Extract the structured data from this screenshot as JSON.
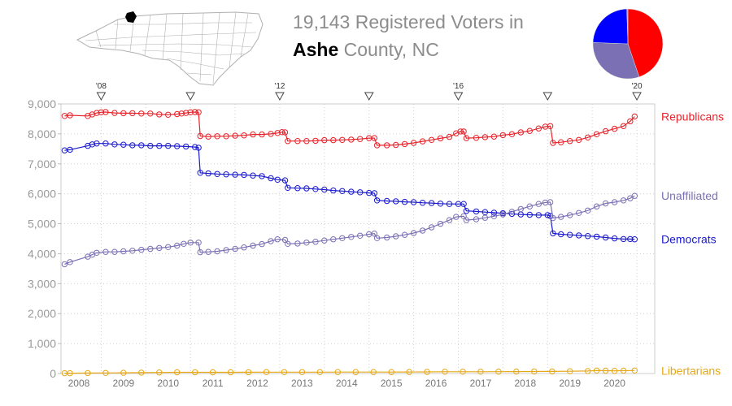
{
  "title": {
    "line1": "19,143 Registered Voters in",
    "county": "Ashe",
    "rest": " County, NC"
  },
  "colors": {
    "republicans": "#e8222a",
    "democrats": "#1a1acd",
    "unaffiliated": "#7b70b3",
    "libertarians": "#e6a817",
    "map_fill": "#ffffff",
    "map_stroke": "#b0b0b0",
    "map_highlight": "#000000",
    "axis_text": "#999999"
  },
  "pie": {
    "slices": [
      {
        "name": "Republicans",
        "value": 45,
        "color": "#ff0000"
      },
      {
        "name": "Unaffiliated",
        "value": 31,
        "color": "#7b70b3"
      },
      {
        "name": "Democrats",
        "value": 24,
        "color": "#0000ff"
      },
      {
        "name": "Libertarians",
        "value": 0.5,
        "color": "#e6a817"
      }
    ]
  },
  "chart_data": {
    "type": "line",
    "x_start": 2007.6,
    "x_end": 2020.9,
    "ylim": [
      0,
      9000
    ],
    "yticks": [
      0,
      1000,
      2000,
      3000,
      4000,
      5000,
      6000,
      7000,
      8000,
      9000
    ],
    "ytick_labels": [
      "0",
      "1,000",
      "2,000",
      "3,000",
      "4,000",
      "5,000",
      "6,000",
      "7,000",
      "8,000",
      "9,000"
    ],
    "xtick_labels": [
      "2008",
      "2009",
      "2010",
      "2011",
      "2012",
      "2013",
      "2014",
      "2015",
      "2016",
      "2017",
      "2018",
      "2019",
      "2020"
    ],
    "xtick_positions": [
      2008,
      2009,
      2010,
      2011,
      2012,
      2013,
      2014,
      2015,
      2016,
      2017,
      2018,
      2019,
      2020
    ],
    "election_markers": [
      {
        "x": 2008.5,
        "label": "'08"
      },
      {
        "x": 2010.5,
        "label": ""
      },
      {
        "x": 2012.5,
        "label": "'12"
      },
      {
        "x": 2014.5,
        "label": ""
      },
      {
        "x": 2016.5,
        "label": "'16"
      },
      {
        "x": 2018.5,
        "label": ""
      },
      {
        "x": 2020.5,
        "label": "'20"
      }
    ],
    "grid": "dotted",
    "series": [
      {
        "name": "Republicans",
        "color": "#e8222a",
        "points": [
          [
            2007.68,
            8600
          ],
          [
            2007.8,
            8620
          ],
          [
            2008.2,
            8600
          ],
          [
            2008.3,
            8650
          ],
          [
            2008.4,
            8700
          ],
          [
            2008.5,
            8720
          ],
          [
            2008.6,
            8730
          ],
          [
            2008.8,
            8700
          ],
          [
            2009.0,
            8690
          ],
          [
            2009.2,
            8690
          ],
          [
            2009.4,
            8680
          ],
          [
            2009.6,
            8680
          ],
          [
            2009.8,
            8650
          ],
          [
            2010.0,
            8640
          ],
          [
            2010.2,
            8660
          ],
          [
            2010.3,
            8680
          ],
          [
            2010.4,
            8700
          ],
          [
            2010.5,
            8720
          ],
          [
            2010.6,
            8730
          ],
          [
            2010.68,
            8720
          ],
          [
            2010.72,
            7930
          ],
          [
            2010.9,
            7910
          ],
          [
            2011.1,
            7920
          ],
          [
            2011.3,
            7920
          ],
          [
            2011.5,
            7940
          ],
          [
            2011.7,
            7950
          ],
          [
            2011.9,
            7980
          ],
          [
            2012.1,
            7980
          ],
          [
            2012.3,
            8000
          ],
          [
            2012.45,
            8030
          ],
          [
            2012.55,
            8060
          ],
          [
            2012.62,
            8050
          ],
          [
            2012.68,
            7760
          ],
          [
            2012.9,
            7760
          ],
          [
            2013.1,
            7760
          ],
          [
            2013.3,
            7770
          ],
          [
            2013.5,
            7790
          ],
          [
            2013.7,
            7790
          ],
          [
            2013.9,
            7800
          ],
          [
            2014.1,
            7810
          ],
          [
            2014.3,
            7830
          ],
          [
            2014.5,
            7860
          ],
          [
            2014.62,
            7860
          ],
          [
            2014.68,
            7620
          ],
          [
            2014.9,
            7620
          ],
          [
            2015.1,
            7630
          ],
          [
            2015.3,
            7660
          ],
          [
            2015.5,
            7700
          ],
          [
            2015.7,
            7750
          ],
          [
            2015.9,
            7800
          ],
          [
            2016.1,
            7850
          ],
          [
            2016.3,
            7900
          ],
          [
            2016.45,
            8020
          ],
          [
            2016.55,
            8080
          ],
          [
            2016.62,
            8080
          ],
          [
            2016.68,
            7860
          ],
          [
            2016.9,
            7870
          ],
          [
            2017.1,
            7890
          ],
          [
            2017.3,
            7910
          ],
          [
            2017.5,
            7960
          ],
          [
            2017.7,
            7990
          ],
          [
            2017.9,
            8050
          ],
          [
            2018.1,
            8100
          ],
          [
            2018.3,
            8180
          ],
          [
            2018.45,
            8240
          ],
          [
            2018.56,
            8260
          ],
          [
            2018.62,
            7700
          ],
          [
            2018.8,
            7720
          ],
          [
            2019.0,
            7760
          ],
          [
            2019.2,
            7800
          ],
          [
            2019.4,
            7880
          ],
          [
            2019.6,
            7990
          ],
          [
            2019.8,
            8090
          ],
          [
            2020.0,
            8170
          ],
          [
            2020.2,
            8260
          ],
          [
            2020.35,
            8420
          ],
          [
            2020.45,
            8580
          ]
        ]
      },
      {
        "name": "Democrats",
        "color": "#1a1acd",
        "points": [
          [
            2007.68,
            7450
          ],
          [
            2007.8,
            7470
          ],
          [
            2008.2,
            7600
          ],
          [
            2008.3,
            7650
          ],
          [
            2008.4,
            7680
          ],
          [
            2008.6,
            7680
          ],
          [
            2008.8,
            7650
          ],
          [
            2009.0,
            7640
          ],
          [
            2009.2,
            7620
          ],
          [
            2009.4,
            7620
          ],
          [
            2009.6,
            7600
          ],
          [
            2009.8,
            7600
          ],
          [
            2010.0,
            7600
          ],
          [
            2010.2,
            7590
          ],
          [
            2010.4,
            7580
          ],
          [
            2010.6,
            7560
          ],
          [
            2010.68,
            7540
          ],
          [
            2010.72,
            6700
          ],
          [
            2010.9,
            6680
          ],
          [
            2011.1,
            6660
          ],
          [
            2011.3,
            6650
          ],
          [
            2011.5,
            6640
          ],
          [
            2011.7,
            6630
          ],
          [
            2011.9,
            6610
          ],
          [
            2012.1,
            6590
          ],
          [
            2012.3,
            6520
          ],
          [
            2012.45,
            6470
          ],
          [
            2012.62,
            6450
          ],
          [
            2012.68,
            6200
          ],
          [
            2012.9,
            6190
          ],
          [
            2013.1,
            6180
          ],
          [
            2013.3,
            6160
          ],
          [
            2013.5,
            6140
          ],
          [
            2013.7,
            6110
          ],
          [
            2013.9,
            6090
          ],
          [
            2014.1,
            6070
          ],
          [
            2014.3,
            6050
          ],
          [
            2014.5,
            6030
          ],
          [
            2014.62,
            6020
          ],
          [
            2014.68,
            5780
          ],
          [
            2014.9,
            5760
          ],
          [
            2015.1,
            5750
          ],
          [
            2015.3,
            5730
          ],
          [
            2015.5,
            5720
          ],
          [
            2015.7,
            5700
          ],
          [
            2015.9,
            5690
          ],
          [
            2016.1,
            5670
          ],
          [
            2016.3,
            5660
          ],
          [
            2016.5,
            5660
          ],
          [
            2016.62,
            5660
          ],
          [
            2016.68,
            5430
          ],
          [
            2016.9,
            5410
          ],
          [
            2017.1,
            5390
          ],
          [
            2017.3,
            5370
          ],
          [
            2017.5,
            5350
          ],
          [
            2017.7,
            5330
          ],
          [
            2017.9,
            5310
          ],
          [
            2018.1,
            5300
          ],
          [
            2018.3,
            5290
          ],
          [
            2018.5,
            5290
          ],
          [
            2018.56,
            5260
          ],
          [
            2018.62,
            4680
          ],
          [
            2018.8,
            4650
          ],
          [
            2019.0,
            4630
          ],
          [
            2019.2,
            4610
          ],
          [
            2019.4,
            4590
          ],
          [
            2019.6,
            4570
          ],
          [
            2019.8,
            4540
          ],
          [
            2020.0,
            4510
          ],
          [
            2020.2,
            4490
          ],
          [
            2020.35,
            4490
          ],
          [
            2020.45,
            4480
          ]
        ]
      },
      {
        "name": "Unaffiliated",
        "color": "#7b70b3",
        "points": [
          [
            2007.68,
            3650
          ],
          [
            2007.8,
            3720
          ],
          [
            2008.2,
            3900
          ],
          [
            2008.3,
            3970
          ],
          [
            2008.4,
            4030
          ],
          [
            2008.6,
            4060
          ],
          [
            2008.8,
            4060
          ],
          [
            2009.0,
            4080
          ],
          [
            2009.2,
            4100
          ],
          [
            2009.4,
            4130
          ],
          [
            2009.6,
            4160
          ],
          [
            2009.8,
            4190
          ],
          [
            2010.0,
            4220
          ],
          [
            2010.2,
            4270
          ],
          [
            2010.35,
            4330
          ],
          [
            2010.5,
            4370
          ],
          [
            2010.68,
            4370
          ],
          [
            2010.72,
            4050
          ],
          [
            2010.9,
            4060
          ],
          [
            2011.1,
            4080
          ],
          [
            2011.3,
            4120
          ],
          [
            2011.5,
            4160
          ],
          [
            2011.7,
            4210
          ],
          [
            2011.9,
            4270
          ],
          [
            2012.1,
            4320
          ],
          [
            2012.3,
            4420
          ],
          [
            2012.45,
            4480
          ],
          [
            2012.62,
            4460
          ],
          [
            2012.68,
            4330
          ],
          [
            2012.9,
            4340
          ],
          [
            2013.1,
            4370
          ],
          [
            2013.3,
            4400
          ],
          [
            2013.5,
            4440
          ],
          [
            2013.7,
            4480
          ],
          [
            2013.9,
            4520
          ],
          [
            2014.1,
            4560
          ],
          [
            2014.3,
            4600
          ],
          [
            2014.5,
            4650
          ],
          [
            2014.62,
            4670
          ],
          [
            2014.68,
            4520
          ],
          [
            2014.9,
            4540
          ],
          [
            2015.1,
            4580
          ],
          [
            2015.3,
            4630
          ],
          [
            2015.5,
            4690
          ],
          [
            2015.7,
            4770
          ],
          [
            2015.9,
            4880
          ],
          [
            2016.1,
            5000
          ],
          [
            2016.3,
            5120
          ],
          [
            2016.45,
            5230
          ],
          [
            2016.62,
            5250
          ],
          [
            2016.68,
            5120
          ],
          [
            2016.9,
            5150
          ],
          [
            2017.1,
            5200
          ],
          [
            2017.3,
            5250
          ],
          [
            2017.5,
            5310
          ],
          [
            2017.7,
            5400
          ],
          [
            2017.9,
            5490
          ],
          [
            2018.1,
            5580
          ],
          [
            2018.3,
            5660
          ],
          [
            2018.45,
            5710
          ],
          [
            2018.56,
            5720
          ],
          [
            2018.62,
            5190
          ],
          [
            2018.8,
            5230
          ],
          [
            2019.0,
            5290
          ],
          [
            2019.2,
            5360
          ],
          [
            2019.4,
            5440
          ],
          [
            2019.6,
            5580
          ],
          [
            2019.8,
            5680
          ],
          [
            2020.0,
            5720
          ],
          [
            2020.2,
            5780
          ],
          [
            2020.35,
            5850
          ],
          [
            2020.45,
            5930
          ]
        ]
      },
      {
        "name": "Libertarians",
        "color": "#e6a817",
        "points": [
          [
            2007.68,
            10
          ],
          [
            2007.8,
            12
          ],
          [
            2008.2,
            15
          ],
          [
            2008.6,
            20
          ],
          [
            2009.0,
            25
          ],
          [
            2009.4,
            30
          ],
          [
            2009.8,
            35
          ],
          [
            2010.2,
            40
          ],
          [
            2010.6,
            42
          ],
          [
            2011.0,
            40
          ],
          [
            2011.4,
            42
          ],
          [
            2011.8,
            44
          ],
          [
            2012.2,
            45
          ],
          [
            2012.6,
            45
          ],
          [
            2013.0,
            45
          ],
          [
            2013.4,
            47
          ],
          [
            2013.8,
            48
          ],
          [
            2014.2,
            50
          ],
          [
            2014.6,
            50
          ],
          [
            2015.0,
            50
          ],
          [
            2015.4,
            52
          ],
          [
            2015.8,
            55
          ],
          [
            2016.2,
            60
          ],
          [
            2016.6,
            60
          ],
          [
            2017.0,
            60
          ],
          [
            2017.4,
            62
          ],
          [
            2017.8,
            65
          ],
          [
            2018.2,
            68
          ],
          [
            2018.6,
            70
          ],
          [
            2019.0,
            75
          ],
          [
            2019.4,
            85
          ],
          [
            2019.6,
            100
          ],
          [
            2019.8,
            95
          ],
          [
            2020.0,
            90
          ],
          [
            2020.2,
            95
          ],
          [
            2020.45,
            100
          ]
        ]
      }
    ]
  }
}
